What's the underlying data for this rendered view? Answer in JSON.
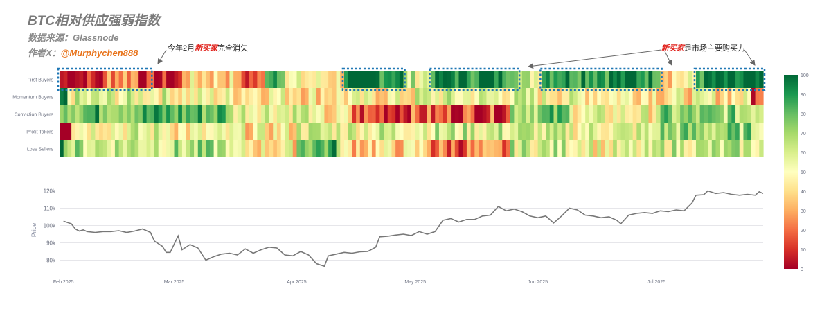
{
  "header": {
    "title": "BTC相对供应强弱指数",
    "source": "数据来源：Glassnode",
    "author_prefix": "作者X：",
    "author_handle": "@Murphychen888"
  },
  "annotations": [
    {
      "pre": "今年2月",
      "hl": "新买家",
      "post": "完全消失"
    },
    {
      "pre": "",
      "hl": "新买家",
      "post": "是市场主要购买力"
    }
  ],
  "colors": {
    "low": "#a50026",
    "mid": "#ffffbf",
    "high": "#006837",
    "price_line": "#777777",
    "annotation_box": "#1f77b4"
  },
  "chart_data": [
    {
      "type": "heatmap",
      "rows": [
        "First Buyers",
        "Momentum Buyers",
        "Conviction Buyers",
        "Profit Takers",
        "Loss Sellers"
      ],
      "x_start": "2025-01-31",
      "x_end": "2025-07-28",
      "zrange": [
        0,
        100
      ],
      "colorbar_ticks": [
        0,
        10,
        20,
        30,
        40,
        50,
        60,
        70,
        80,
        90,
        100
      ],
      "colorscale": "RdYlGn",
      "segments": {
        "First Buyers": [
          [
            "2025-01-31",
            "2025-02-12",
            5
          ],
          [
            "2025-02-12",
            "2025-02-20",
            30
          ],
          [
            "2025-02-20",
            "2025-03-03",
            3
          ],
          [
            "2025-03-03",
            "2025-03-17",
            40
          ],
          [
            "2025-03-17",
            "2025-03-24",
            15
          ],
          [
            "2025-03-24",
            "2025-03-29",
            95
          ],
          [
            "2025-03-29",
            "2025-04-13",
            45
          ],
          [
            "2025-04-13",
            "2025-04-28",
            97
          ],
          [
            "2025-04-28",
            "2025-05-05",
            60
          ],
          [
            "2025-05-05",
            "2025-05-27",
            96
          ],
          [
            "2025-05-27",
            "2025-06-02",
            60
          ],
          [
            "2025-06-02",
            "2025-07-02",
            95
          ],
          [
            "2025-07-02",
            "2025-07-11",
            45
          ],
          [
            "2025-07-11",
            "2025-07-28",
            92
          ]
        ],
        "Momentum Buyers": [
          [
            "2025-01-31",
            "2025-02-02",
            90
          ],
          [
            "2025-02-02",
            "2025-03-01",
            55
          ],
          [
            "2025-03-01",
            "2025-04-01",
            48
          ],
          [
            "2025-04-01",
            "2025-05-01",
            45
          ],
          [
            "2025-05-01",
            "2025-06-01",
            55
          ],
          [
            "2025-06-01",
            "2025-07-01",
            50
          ],
          [
            "2025-07-01",
            "2025-07-25",
            45
          ],
          [
            "2025-07-25",
            "2025-07-28",
            15
          ]
        ],
        "Conviction Buyers": [
          [
            "2025-01-31",
            "2025-02-02",
            90
          ],
          [
            "2025-02-02",
            "2025-03-15",
            82
          ],
          [
            "2025-03-15",
            "2025-04-05",
            60
          ],
          [
            "2025-04-05",
            "2025-04-15",
            40
          ],
          [
            "2025-04-15",
            "2025-05-25",
            15
          ],
          [
            "2025-05-25",
            "2025-06-10",
            75
          ],
          [
            "2025-06-10",
            "2025-07-01",
            50
          ],
          [
            "2025-07-01",
            "2025-07-28",
            70
          ]
        ],
        "Profit Takers": [
          [
            "2025-01-31",
            "2025-02-03",
            5
          ],
          [
            "2025-02-03",
            "2025-03-01",
            55
          ],
          [
            "2025-03-01",
            "2025-04-01",
            45
          ],
          [
            "2025-04-01",
            "2025-05-01",
            58
          ],
          [
            "2025-05-01",
            "2025-06-01",
            60
          ],
          [
            "2025-06-01",
            "2025-07-01",
            55
          ],
          [
            "2025-07-01",
            "2025-07-28",
            70
          ]
        ],
        "Loss Sellers": [
          [
            "2025-01-31",
            "2025-02-02",
            90
          ],
          [
            "2025-02-02",
            "2025-03-15",
            65
          ],
          [
            "2025-03-15",
            "2025-04-01",
            45
          ],
          [
            "2025-04-01",
            "2025-04-12",
            82
          ],
          [
            "2025-04-12",
            "2025-05-05",
            40
          ],
          [
            "2025-05-05",
            "2025-05-25",
            20
          ],
          [
            "2025-05-25",
            "2025-06-15",
            60
          ],
          [
            "2025-06-15",
            "2025-07-01",
            50
          ],
          [
            "2025-07-01",
            "2025-07-28",
            60
          ]
        ]
      },
      "highlight_boxes": [
        {
          "row": "First Buyers",
          "x_start": "2025-01-31",
          "x_end": "2025-02-23"
        },
        {
          "row": "First Buyers",
          "x_start": "2025-04-13",
          "x_end": "2025-04-28"
        },
        {
          "row": "First Buyers",
          "x_start": "2025-05-05",
          "x_end": "2025-05-27"
        },
        {
          "row": "First Buyers",
          "x_start": "2025-06-02",
          "x_end": "2025-07-02"
        },
        {
          "row": "First Buyers",
          "x_start": "2025-07-11",
          "x_end": "2025-07-28"
        }
      ]
    },
    {
      "type": "line",
      "ylabel": "Price",
      "ylim": [
        75000,
        123000
      ],
      "yticks": [
        80000,
        90000,
        100000,
        110000,
        120000
      ],
      "ytick_labels": [
        "80k",
        "90k",
        "100k",
        "110k",
        "120k"
      ],
      "xtick_labels": [
        {
          "date": "2025-02-01",
          "label": "Feb 2025"
        },
        {
          "date": "2025-03-01",
          "label": "Mar 2025"
        },
        {
          "date": "2025-04-01",
          "label": "Apr 2025"
        },
        {
          "date": "2025-05-01",
          "label": "May 2025"
        },
        {
          "date": "2025-06-01",
          "label": "Jun 2025"
        },
        {
          "date": "2025-07-01",
          "label": "Jul 2025"
        }
      ],
      "points": [
        [
          "2025-02-01",
          102500
        ],
        [
          "2025-02-03",
          101000
        ],
        [
          "2025-02-04",
          98000
        ],
        [
          "2025-02-05",
          96800
        ],
        [
          "2025-02-06",
          97500
        ],
        [
          "2025-02-07",
          96500
        ],
        [
          "2025-02-09",
          96000
        ],
        [
          "2025-02-11",
          96500
        ],
        [
          "2025-02-13",
          96500
        ],
        [
          "2025-02-15",
          97000
        ],
        [
          "2025-02-17",
          96000
        ],
        [
          "2025-02-19",
          96800
        ],
        [
          "2025-02-21",
          98000
        ],
        [
          "2025-02-23",
          96000
        ],
        [
          "2025-02-24",
          91000
        ],
        [
          "2025-02-26",
          88000
        ],
        [
          "2025-02-27",
          84500
        ],
        [
          "2025-02-28",
          84500
        ],
        [
          "2025-03-02",
          94000
        ],
        [
          "2025-03-03",
          86000
        ],
        [
          "2025-03-05",
          89000
        ],
        [
          "2025-03-07",
          87000
        ],
        [
          "2025-03-09",
          80000
        ],
        [
          "2025-03-11",
          82000
        ],
        [
          "2025-03-13",
          83500
        ],
        [
          "2025-03-15",
          84000
        ],
        [
          "2025-03-17",
          83000
        ],
        [
          "2025-03-19",
          86500
        ],
        [
          "2025-03-21",
          84000
        ],
        [
          "2025-03-23",
          86000
        ],
        [
          "2025-03-25",
          87500
        ],
        [
          "2025-03-27",
          87000
        ],
        [
          "2025-03-29",
          83000
        ],
        [
          "2025-03-31",
          82500
        ],
        [
          "2025-04-02",
          85000
        ],
        [
          "2025-04-04",
          83000
        ],
        [
          "2025-04-06",
          78000
        ],
        [
          "2025-04-08",
          76500
        ],
        [
          "2025-04-09",
          82500
        ],
        [
          "2025-04-11",
          83500
        ],
        [
          "2025-04-13",
          84500
        ],
        [
          "2025-04-15",
          84000
        ],
        [
          "2025-04-17",
          84800
        ],
        [
          "2025-04-19",
          85000
        ],
        [
          "2025-04-21",
          87500
        ],
        [
          "2025-04-22",
          93500
        ],
        [
          "2025-04-24",
          93800
        ],
        [
          "2025-04-26",
          94500
        ],
        [
          "2025-04-28",
          95000
        ],
        [
          "2025-04-30",
          94200
        ],
        [
          "2025-05-02",
          96500
        ],
        [
          "2025-05-04",
          95000
        ],
        [
          "2025-05-06",
          96500
        ],
        [
          "2025-05-08",
          103000
        ],
        [
          "2025-05-10",
          104000
        ],
        [
          "2025-05-12",
          102000
        ],
        [
          "2025-05-14",
          103500
        ],
        [
          "2025-05-16",
          103500
        ],
        [
          "2025-05-18",
          105500
        ],
        [
          "2025-05-20",
          106000
        ],
        [
          "2025-05-22",
          111000
        ],
        [
          "2025-05-24",
          108500
        ],
        [
          "2025-05-26",
          109500
        ],
        [
          "2025-05-28",
          108000
        ],
        [
          "2025-05-30",
          105500
        ],
        [
          "2025-06-01",
          104500
        ],
        [
          "2025-06-03",
          105500
        ],
        [
          "2025-06-05",
          101500
        ],
        [
          "2025-06-07",
          105500
        ],
        [
          "2025-06-09",
          110000
        ],
        [
          "2025-06-11",
          109000
        ],
        [
          "2025-06-13",
          106000
        ],
        [
          "2025-06-15",
          105500
        ],
        [
          "2025-06-17",
          104500
        ],
        [
          "2025-06-19",
          105000
        ],
        [
          "2025-06-21",
          103000
        ],
        [
          "2025-06-22",
          101000
        ],
        [
          "2025-06-24",
          106000
        ],
        [
          "2025-06-26",
          107000
        ],
        [
          "2025-06-28",
          107500
        ],
        [
          "2025-06-30",
          107000
        ],
        [
          "2025-07-02",
          108500
        ],
        [
          "2025-07-04",
          108000
        ],
        [
          "2025-07-06",
          109000
        ],
        [
          "2025-07-08",
          108500
        ],
        [
          "2025-07-10",
          113000
        ],
        [
          "2025-07-11",
          117500
        ],
        [
          "2025-07-13",
          117800
        ],
        [
          "2025-07-14",
          120000
        ],
        [
          "2025-07-16",
          118500
        ],
        [
          "2025-07-18",
          119000
        ],
        [
          "2025-07-20",
          118000
        ],
        [
          "2025-07-22",
          117500
        ],
        [
          "2025-07-24",
          118000
        ],
        [
          "2025-07-26",
          117500
        ],
        [
          "2025-07-27",
          119500
        ],
        [
          "2025-07-28",
          118500
        ]
      ]
    }
  ]
}
